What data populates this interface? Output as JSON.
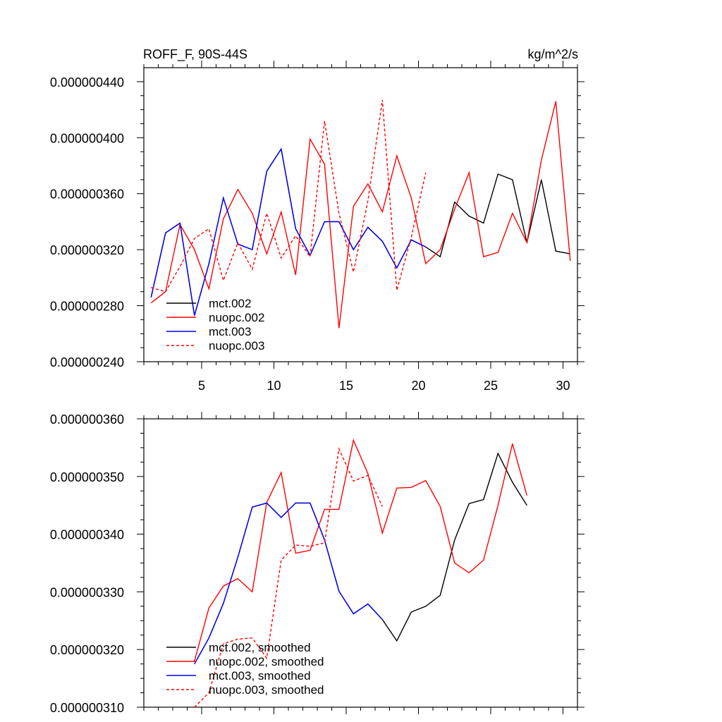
{
  "chart_data": [
    {
      "type": "line",
      "title_left": "ROFF_F, 90S-44S",
      "title_right": "kg/m^2/s",
      "xlim": [
        1,
        31
      ],
      "ylim": [
        2.4e-07,
        4.5e-07
      ],
      "x_ticks": [
        5,
        10,
        15,
        20,
        25,
        30
      ],
      "x_tick_labels": [
        "5",
        "10",
        "15",
        "20",
        "25",
        "30"
      ],
      "y_ticks": [
        2.4e-07,
        2.8e-07,
        3.2e-07,
        3.6e-07,
        4e-07,
        4.4e-07
      ],
      "y_tick_labels": [
        "0.000000240",
        "0.000000280",
        "0.000000320",
        "0.000000360",
        "0.000000400",
        "0.000000440"
      ],
      "series": [
        {
          "name": "mct.002",
          "color": "#000000",
          "dash": "solid",
          "x": [
            1.5,
            2.5,
            3.5,
            4.5,
            5.5,
            6.5,
            7.5,
            8.5,
            9.5,
            10.5,
            11.5,
            12.5,
            13.5,
            14.5,
            15.5,
            16.5,
            17.5,
            18.5,
            19.5,
            20.5,
            21.5,
            22.5,
            23.5,
            24.5,
            25.5,
            26.5,
            27.5,
            28.5,
            29.5,
            30.5
          ],
          "y": [
            2.86e-07,
            3.32e-07,
            3.39e-07,
            2.73e-07,
            3.1e-07,
            3.57e-07,
            3.24e-07,
            3.2e-07,
            3.76e-07,
            3.92e-07,
            3.35e-07,
            3.16e-07,
            3.4e-07,
            3.4e-07,
            3.2e-07,
            3.36e-07,
            3.26e-07,
            3.07e-07,
            3.27e-07,
            3.22e-07,
            3.15e-07,
            3.54e-07,
            3.44e-07,
            3.39e-07,
            3.74e-07,
            3.7e-07,
            3.25e-07,
            3.7e-07,
            3.19e-07,
            3.17e-07
          ]
        },
        {
          "name": "nuopc.002",
          "color": "#ff0000",
          "dash": "solid",
          "x": [
            1.5,
            2.5,
            3.5,
            4.5,
            5.5,
            6.5,
            7.5,
            8.5,
            9.5,
            10.5,
            11.5,
            12.5,
            13.5,
            14.5,
            15.5,
            16.5,
            17.5,
            18.5,
            19.5,
            20.5,
            21.5,
            22.5,
            23.5,
            24.5,
            25.5,
            26.5,
            27.5,
            28.5,
            29.5,
            30.5
          ],
          "y": [
            2.82e-07,
            2.9e-07,
            3.38e-07,
            3.2e-07,
            2.92e-07,
            3.42e-07,
            3.63e-07,
            3.46e-07,
            3.17e-07,
            3.47e-07,
            3.02e-07,
            3.99e-07,
            3.81e-07,
            2.64e-07,
            3.51e-07,
            3.67e-07,
            3.47e-07,
            3.87e-07,
            3.57e-07,
            3.1e-07,
            3.2e-07,
            3.49e-07,
            3.75e-07,
            3.15e-07,
            3.18e-07,
            3.46e-07,
            3.25e-07,
            3.84e-07,
            4.26e-07,
            3.12e-07
          ]
        },
        {
          "name": "mct.003",
          "color": "#0000ff",
          "dash": "solid",
          "x": [
            1.5,
            2.5,
            3.5,
            4.5,
            5.5,
            6.5,
            7.5,
            8.5,
            9.5,
            10.5,
            11.5,
            12.5,
            13.5,
            14.5,
            15.5,
            16.5,
            17.5,
            18.5,
            19.5,
            20.5
          ],
          "y": [
            2.86e-07,
            3.32e-07,
            3.39e-07,
            2.73e-07,
            3.1e-07,
            3.57e-07,
            3.24e-07,
            3.2e-07,
            3.76e-07,
            3.92e-07,
            3.35e-07,
            3.16e-07,
            3.4e-07,
            3.4e-07,
            3.2e-07,
            3.36e-07,
            3.26e-07,
            3.07e-07,
            3.27e-07,
            3.22e-07
          ]
        },
        {
          "name": "nuopc.003",
          "color": "#ff0000",
          "dash": "dashed",
          "x": [
            1.5,
            2.5,
            3.5,
            4.5,
            5.5,
            6.5,
            7.5,
            8.5,
            9.5,
            10.5,
            11.5,
            12.5,
            13.5,
            14.5,
            15.5,
            16.5,
            17.5,
            18.5,
            19.5,
            20.5
          ],
          "y": [
            2.93e-07,
            2.9e-07,
            3.08e-07,
            3.28e-07,
            3.35e-07,
            2.98e-07,
            3.25e-07,
            3.06e-07,
            3.46e-07,
            3.14e-07,
            3.3e-07,
            3.15e-07,
            4.12e-07,
            3.46e-07,
            3.04e-07,
            3.55e-07,
            4.27e-07,
            2.91e-07,
            3.29e-07,
            3.75e-07
          ]
        }
      ],
      "legend_position": "bottom-left"
    },
    {
      "type": "line",
      "xlim": [
        1,
        31
      ],
      "ylim": [
        3.1e-07,
        3.6e-07
      ],
      "x_ticks": [
        5,
        10,
        15,
        20,
        25,
        30
      ],
      "y_ticks": [
        3.1e-07,
        3.2e-07,
        3.3e-07,
        3.4e-07,
        3.5e-07,
        3.6e-07
      ],
      "y_tick_labels": [
        "0.000000310",
        "0.000000320",
        "0.000000330",
        "0.000000340",
        "0.000000350",
        "0.000000360"
      ],
      "series": [
        {
          "name": "mct.002, smoothed",
          "color": "#000000",
          "dash": "solid",
          "x": [
            4.5,
            5.5,
            6.5,
            7.5,
            8.5,
            9.5,
            10.5,
            11.5,
            12.5,
            13.5,
            14.5,
            15.5,
            16.5,
            17.5,
            18.5,
            19.5,
            20.5,
            21.5,
            22.5,
            23.5,
            24.5,
            25.5,
            26.5,
            27.5
          ],
          "y": [
            3.175e-07,
            3.22e-07,
            3.28e-07,
            3.36e-07,
            3.447e-07,
            3.454e-07,
            3.429e-07,
            3.454e-07,
            3.454e-07,
            3.39e-07,
            3.301e-07,
            3.262e-07,
            3.279e-07,
            3.252e-07,
            3.215e-07,
            3.265e-07,
            3.275e-07,
            3.294e-07,
            3.39e-07,
            3.453e-07,
            3.46e-07,
            3.54e-07,
            3.49e-07,
            3.45e-07
          ]
        },
        {
          "name": "nuopc.002, smoothed",
          "color": "#ff0000",
          "dash": "solid",
          "x": [
            4.5,
            5.5,
            6.5,
            7.5,
            8.5,
            9.5,
            10.5,
            11.5,
            12.5,
            13.5,
            14.5,
            15.5,
            16.5,
            17.5,
            18.5,
            19.5,
            20.5,
            21.5,
            22.5,
            23.5,
            24.5,
            25.5,
            26.5,
            27.5
          ],
          "y": [
            3.18e-07,
            3.272e-07,
            3.31e-07,
            3.323e-07,
            3.3e-07,
            3.455e-07,
            3.507e-07,
            3.367e-07,
            3.372e-07,
            3.443e-07,
            3.443e-07,
            3.563e-07,
            3.505e-07,
            3.402e-07,
            3.48e-07,
            3.481e-07,
            3.493e-07,
            3.448e-07,
            3.35e-07,
            3.333e-07,
            3.355e-07,
            3.45e-07,
            3.557e-07,
            3.467e-07
          ]
        },
        {
          "name": "mct.003, smoothed",
          "color": "#0000ff",
          "dash": "solid",
          "x": [
            4.5,
            5.5,
            6.5,
            7.5,
            8.5,
            9.5,
            10.5,
            11.5,
            12.5,
            13.5,
            14.5,
            15.5,
            16.5,
            17.5
          ],
          "y": [
            3.175e-07,
            3.22e-07,
            3.28e-07,
            3.36e-07,
            3.447e-07,
            3.454e-07,
            3.429e-07,
            3.454e-07,
            3.454e-07,
            3.39e-07,
            3.301e-07,
            3.262e-07,
            3.279e-07,
            3.252e-07
          ]
        },
        {
          "name": "nuopc.003, smoothed",
          "color": "#ff0000",
          "dash": "dashed",
          "x": [
            4.5,
            5.5,
            6.5,
            7.5,
            8.5,
            9.5,
            10.5,
            11.5,
            12.5,
            13.5,
            14.5,
            15.5,
            16.5,
            17.5
          ],
          "y": [
            3.1e-07,
            3.125e-07,
            3.21e-07,
            3.218e-07,
            3.22e-07,
            3.185e-07,
            3.355e-07,
            3.381e-07,
            3.379e-07,
            3.385e-07,
            3.548e-07,
            3.492e-07,
            3.502e-07,
            3.448e-07
          ]
        }
      ],
      "legend_position": "bottom-left"
    }
  ]
}
